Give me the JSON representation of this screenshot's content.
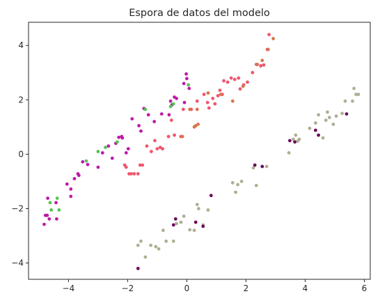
{
  "chart_data": {
    "type": "scatter",
    "title": "Espora de datos del modelo",
    "xlabel": "",
    "ylabel": "",
    "xlim": [
      -5.35,
      6.2
    ],
    "ylim": [
      -4.6,
      4.85
    ],
    "xticks": [
      -4,
      -2,
      0,
      2,
      4,
      6
    ],
    "yticks": [
      -4,
      -2,
      0,
      2,
      4
    ],
    "xtick_labels": [
      "−4",
      "−2",
      "0",
      "2",
      "4",
      "6"
    ],
    "ytick_labels": [
      "−4",
      "−2",
      "0",
      "2",
      "4"
    ],
    "grid": false,
    "legend": false,
    "series": [
      {
        "color": "#bf1aa8",
        "points": [
          [
            -4.82,
            -2.58
          ],
          [
            -4.78,
            -2.25
          ],
          [
            -4.72,
            -2.25
          ],
          [
            -4.7,
            -1.62
          ],
          [
            -4.65,
            -2.38
          ],
          [
            -4.4,
            -2.38
          ],
          [
            -4.42,
            -1.78
          ],
          [
            -4.05,
            -1.1
          ],
          [
            -3.92,
            -1.55
          ],
          [
            -3.92,
            -1.28
          ],
          [
            -3.8,
            -0.9
          ],
          [
            -3.68,
            -0.72
          ],
          [
            -3.65,
            -0.78
          ],
          [
            -3.52,
            -0.28
          ],
          [
            -3.35,
            -0.38
          ],
          [
            -3.0,
            -0.48
          ],
          [
            -2.85,
            0.05
          ],
          [
            -2.65,
            0.3
          ],
          [
            -2.52,
            -0.15
          ],
          [
            -2.4,
            0.4
          ],
          [
            -2.3,
            0.62
          ],
          [
            -2.2,
            0.65
          ],
          [
            -2.18,
            0.6
          ],
          [
            -2.05,
            0.05
          ],
          [
            -1.98,
            0.2
          ],
          [
            -1.85,
            1.3
          ],
          [
            -1.62,
            1.05
          ],
          [
            -1.55,
            0.85
          ],
          [
            -1.45,
            1.68
          ],
          [
            -1.3,
            1.45
          ],
          [
            -1.1,
            1.2
          ],
          [
            -0.85,
            1.48
          ],
          [
            -0.6,
            1.45
          ],
          [
            -0.55,
            1.95
          ],
          [
            -0.5,
            1.82
          ],
          [
            -0.42,
            2.1
          ],
          [
            -0.35,
            2.05
          ],
          [
            -0.1,
            2.6
          ],
          [
            -0.08,
            1.9
          ],
          [
            -0.02,
            2.95
          ],
          [
            0.0,
            2.78
          ],
          [
            0.08,
            2.42
          ]
        ]
      },
      {
        "color": "#f0566e",
        "points": [
          [
            -2.1,
            -0.4
          ],
          [
            -2.05,
            -0.48
          ],
          [
            -1.95,
            -0.72
          ],
          [
            -1.88,
            -0.72
          ],
          [
            -1.78,
            -0.72
          ],
          [
            -1.65,
            -0.72
          ],
          [
            -1.58,
            -0.4
          ],
          [
            -1.5,
            -0.4
          ],
          [
            -1.35,
            0.3
          ],
          [
            -1.2,
            0.1
          ],
          [
            -1.08,
            0.5
          ],
          [
            -1.0,
            0.2
          ],
          [
            -0.9,
            0.25
          ],
          [
            -0.82,
            0.2
          ],
          [
            -0.62,
            0.65
          ],
          [
            -0.52,
            1.25
          ],
          [
            -0.42,
            0.7
          ],
          [
            -0.2,
            0.65
          ],
          [
            -0.12,
            1.65
          ],
          [
            0.15,
            1.65
          ],
          [
            0.35,
            1.95
          ],
          [
            0.58,
            2.2
          ],
          [
            0.7,
            1.9
          ],
          [
            0.75,
            1.7
          ],
          [
            0.88,
            2.05
          ],
          [
            0.95,
            1.85
          ],
          [
            1.05,
            2.15
          ],
          [
            1.12,
            2.35
          ],
          [
            1.2,
            2.2
          ],
          [
            1.25,
            2.7
          ],
          [
            1.38,
            2.65
          ],
          [
            1.5,
            2.8
          ],
          [
            1.62,
            2.75
          ],
          [
            1.75,
            2.8
          ],
          [
            1.8,
            2.4
          ],
          [
            1.92,
            2.55
          ],
          [
            2.05,
            2.65
          ],
          [
            2.22,
            3.0
          ],
          [
            2.38,
            3.3
          ],
          [
            2.5,
            3.25
          ],
          [
            2.6,
            3.28
          ],
          [
            2.72,
            3.85
          ],
          [
            2.78,
            4.4
          ]
        ]
      },
      {
        "color": "#d9744a",
        "points": [
          [
            -0.15,
            0.65
          ],
          [
            0.1,
            1.65
          ],
          [
            0.25,
            1.0
          ],
          [
            0.3,
            1.05
          ],
          [
            0.35,
            1.65
          ],
          [
            0.38,
            1.1
          ],
          [
            0.72,
            2.25
          ],
          [
            1.15,
            2.2
          ],
          [
            1.55,
            1.95
          ],
          [
            1.9,
            2.5
          ],
          [
            2.35,
            3.3
          ],
          [
            2.55,
            3.45
          ],
          [
            2.75,
            3.85
          ],
          [
            2.92,
            4.25
          ]
        ]
      },
      {
        "color": "#55c455",
        "points": [
          [
            -4.62,
            -1.78
          ],
          [
            -4.58,
            -2.05
          ],
          [
            -4.38,
            -1.62
          ],
          [
            -4.32,
            -2.05
          ],
          [
            -3.4,
            -0.25
          ],
          [
            -3.0,
            0.1
          ],
          [
            -2.75,
            0.25
          ],
          [
            -2.35,
            0.45
          ],
          [
            -1.4,
            1.65
          ],
          [
            -0.55,
            1.75
          ],
          [
            -0.45,
            1.85
          ],
          [
            0.05,
            2.55
          ]
        ]
      },
      {
        "color": "#b0ae94",
        "points": [
          [
            -1.65,
            -3.35
          ],
          [
            -1.55,
            -3.2
          ],
          [
            -1.4,
            -3.78
          ],
          [
            -1.22,
            -3.35
          ],
          [
            -1.05,
            -3.4
          ],
          [
            -0.95,
            -3.48
          ],
          [
            -0.8,
            -2.8
          ],
          [
            -0.7,
            -3.2
          ],
          [
            -0.45,
            -3.2
          ],
          [
            -0.35,
            -2.55
          ],
          [
            -0.2,
            -2.5
          ],
          [
            -0.1,
            -2.28
          ],
          [
            0.1,
            -2.78
          ],
          [
            0.25,
            -2.8
          ],
          [
            0.35,
            -1.85
          ],
          [
            0.4,
            -2.0
          ],
          [
            0.55,
            -2.6
          ],
          [
            0.72,
            -2.05
          ],
          [
            1.55,
            -1.05
          ],
          [
            1.65,
            -1.4
          ],
          [
            1.72,
            -1.12
          ],
          [
            1.85,
            -1.0
          ],
          [
            2.25,
            -0.5
          ],
          [
            2.35,
            -1.15
          ],
          [
            2.7,
            -0.45
          ],
          [
            3.45,
            0.05
          ],
          [
            3.6,
            0.55
          ],
          [
            3.68,
            0.7
          ],
          [
            3.75,
            0.48
          ],
          [
            3.8,
            0.55
          ],
          [
            4.35,
            1.15
          ],
          [
            4.45,
            1.45
          ],
          [
            4.6,
            0.6
          ],
          [
            4.7,
            1.25
          ],
          [
            4.75,
            1.55
          ],
          [
            4.82,
            1.35
          ],
          [
            4.95,
            1.1
          ],
          [
            5.05,
            1.4
          ],
          [
            5.25,
            1.5
          ],
          [
            5.35,
            1.95
          ],
          [
            5.6,
            1.95
          ],
          [
            5.65,
            2.42
          ],
          [
            5.72,
            2.2
          ],
          [
            5.8,
            2.2
          ],
          [
            4.15,
            0.95
          ]
        ]
      },
      {
        "color": "#6b0b5b",
        "points": [
          [
            -1.65,
            -4.2
          ],
          [
            -0.45,
            -2.6
          ],
          [
            -0.38,
            -2.38
          ],
          [
            0.3,
            -2.5
          ],
          [
            0.55,
            -2.65
          ],
          [
            0.82,
            -1.52
          ],
          [
            2.3,
            -0.4
          ],
          [
            2.55,
            -0.45
          ],
          [
            3.48,
            0.5
          ],
          [
            3.65,
            0.45
          ],
          [
            4.35,
            0.88
          ],
          [
            4.45,
            0.7
          ],
          [
            5.4,
            1.48
          ]
        ]
      }
    ]
  }
}
